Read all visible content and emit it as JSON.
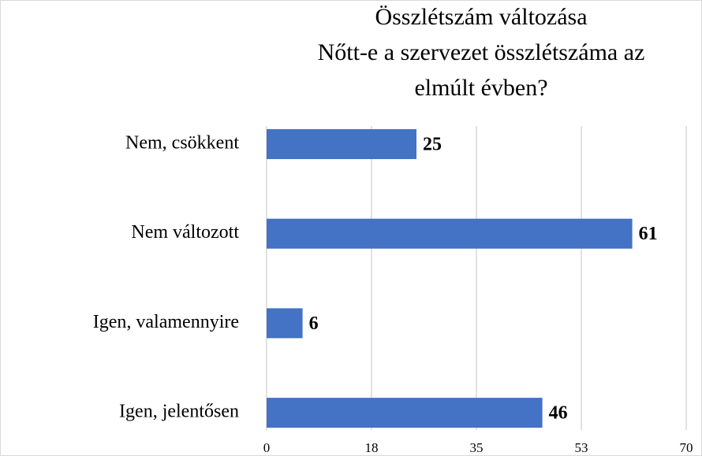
{
  "chart_data": {
    "type": "hbar",
    "title": [
      "Összlétszám változása",
      "Nőtt-e a szervezet összlétszáma az",
      "elmúlt évben?"
    ],
    "categories": [
      "Nem, csökkent",
      "Nem változott",
      "Igen, valamennyire",
      "Igen, jelentősen"
    ],
    "values": [
      25,
      61,
      6,
      46
    ],
    "color": "#4472c4",
    "xlim": [
      0,
      70
    ],
    "xticks": [
      0,
      {
        "value": 17.5,
        "label": "18"
      },
      35,
      {
        "value": 52.5,
        "label": "53"
      },
      70
    ],
    "grid": true
  }
}
